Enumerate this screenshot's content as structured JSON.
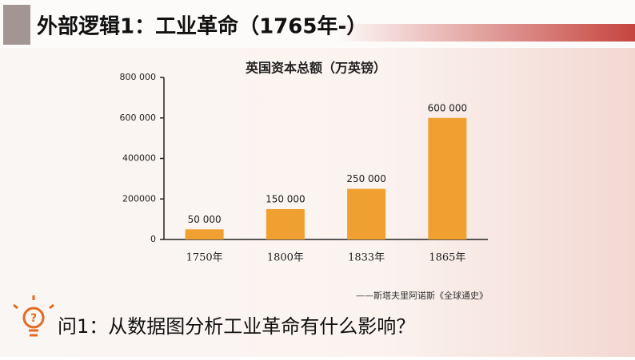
{
  "header": {
    "title": "外部逻辑1：工业革命（1765年-）"
  },
  "chart_data": {
    "type": "bar",
    "title": "英国资本总额（万英镑）",
    "categories": [
      "1750年",
      "1800年",
      "1833年",
      "1865年"
    ],
    "values": [
      50000,
      150000,
      250000,
      600000
    ],
    "value_labels": [
      "50 000",
      "150 000",
      "250 000",
      "600 000"
    ],
    "color": "#f0a030",
    "ylim": [
      0,
      800000
    ],
    "yticks": [
      0,
      200000,
      400000,
      {
        "value": 600000,
        "label": "600 000"
      },
      {
        "value": 800000,
        "label": "800 000"
      }
    ]
  },
  "source": "——斯塔夫里阿诺斯《全球通史》",
  "question": "问1：从数据图分析工业革命有什么影响？"
}
